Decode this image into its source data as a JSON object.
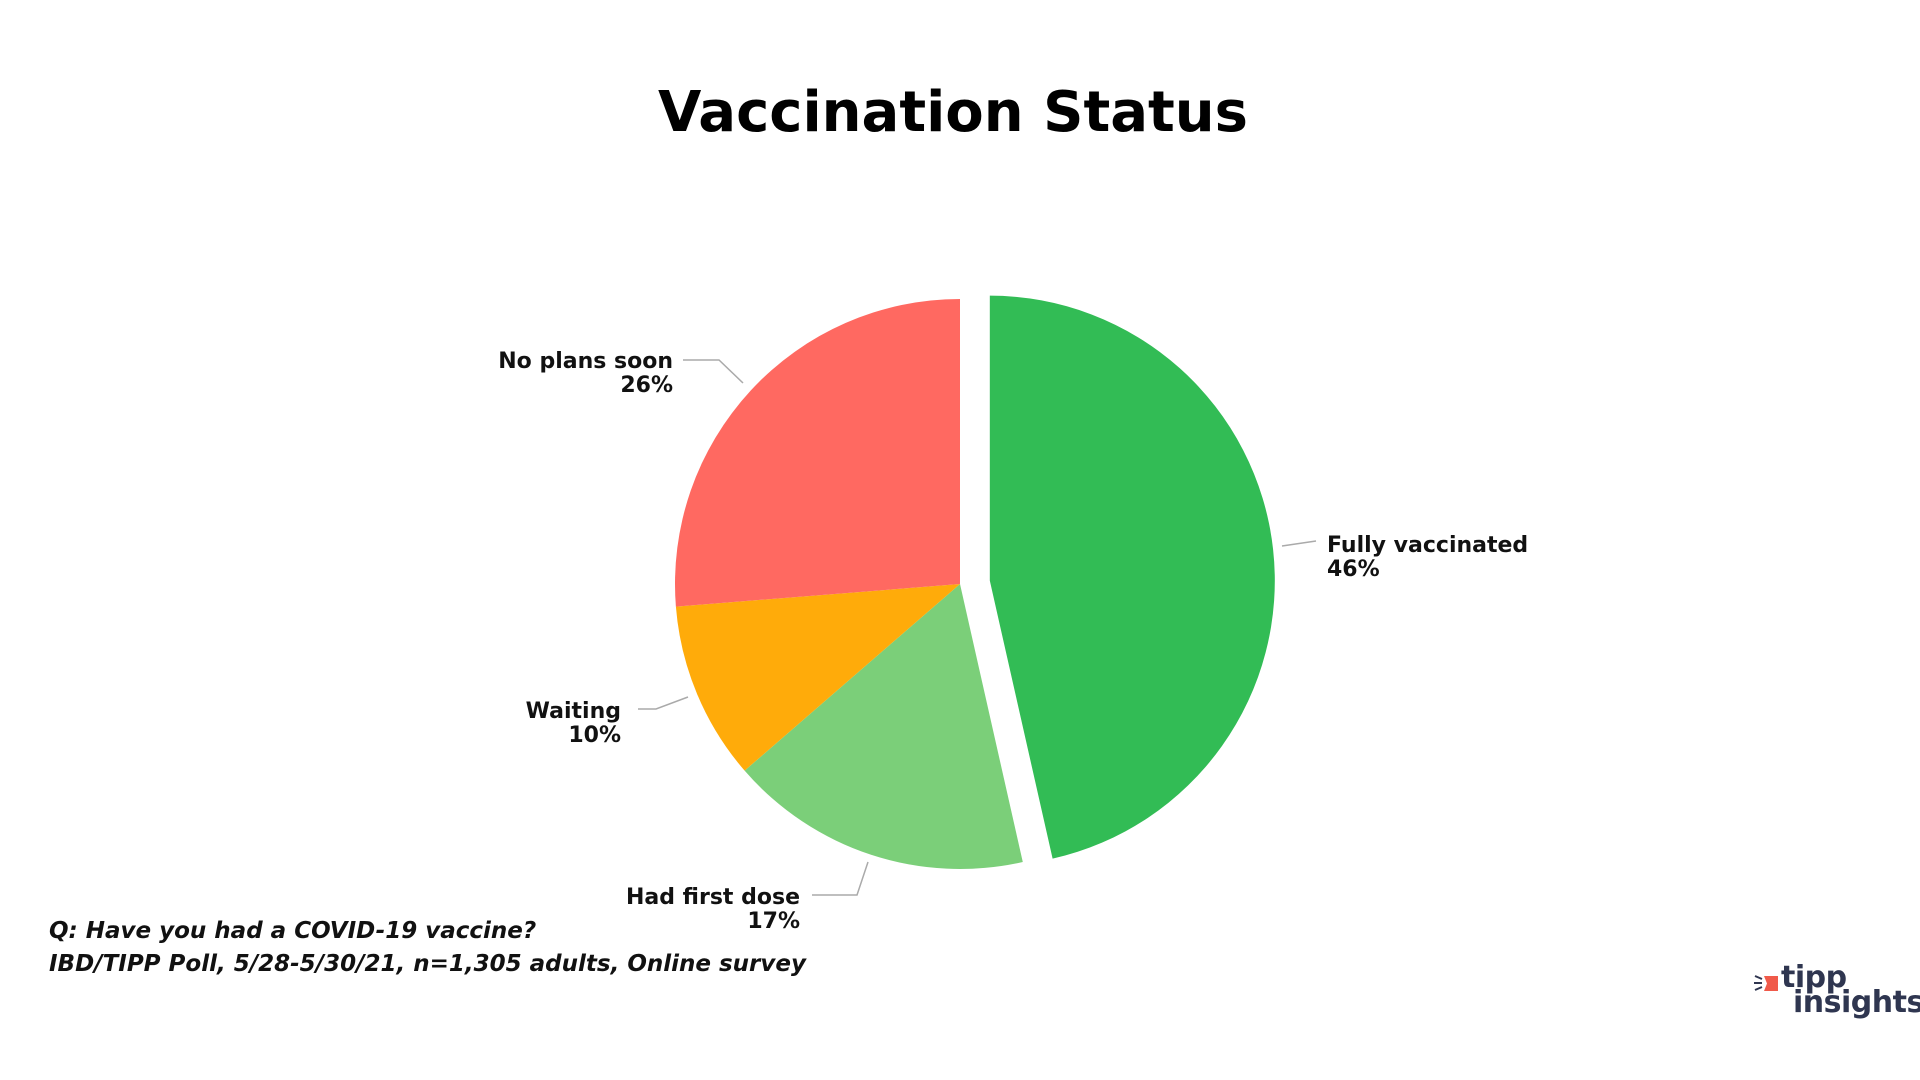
{
  "chart_data": {
    "type": "pie",
    "title": "Vaccination Status",
    "slices": [
      {
        "label": "Fully vaccinated",
        "value": 46,
        "display": "46%",
        "color": "#32bc55",
        "exploded": true
      },
      {
        "label": "Had first dose",
        "value": 17,
        "display": "17%",
        "color": "#7bcf79",
        "exploded": false
      },
      {
        "label": "Waiting",
        "value": 10,
        "display": "10%",
        "color": "#ffab0a",
        "exploded": false
      },
      {
        "label": "No plans soon",
        "value": 26,
        "display": "26%",
        "color": "#ff6961",
        "exploded": false
      }
    ],
    "start": "top",
    "direction": "clockwise",
    "legend": "none",
    "data_labels": "outside with leader lines"
  },
  "footnote": {
    "question": "Q:  Have you had a COVID-19 vaccine?",
    "source": "IBD/TIPP Poll, 5/28-5/30/21, n=1,305 adults, Online survey"
  },
  "logo": {
    "line1": "tipp",
    "line2": "insights",
    "accent": "#f05a4a",
    "color": "#2f3650"
  }
}
